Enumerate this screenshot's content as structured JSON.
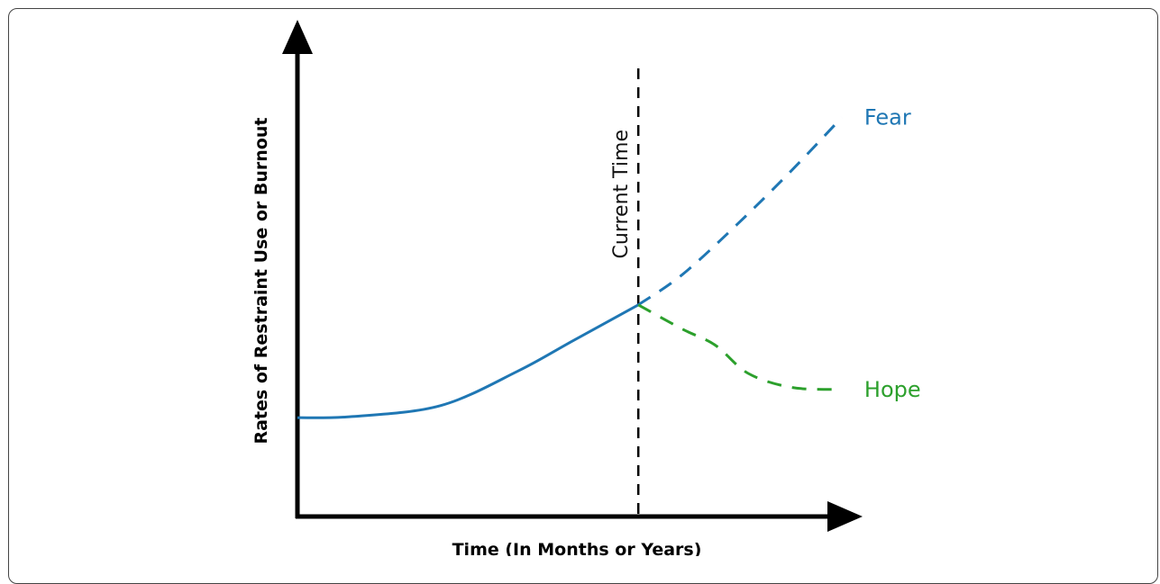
{
  "chart_data": {
    "type": "line",
    "title": "",
    "xlabel": "Time (In Months or Years)",
    "ylabel": "Rates of Restraint Use or Burnout",
    "xlim": [
      0,
      100
    ],
    "ylim": [
      0,
      100
    ],
    "grid": false,
    "marker": {
      "label": "Current Time",
      "x": 62,
      "style": "dashed",
      "color": "#000000"
    },
    "series": [
      {
        "name": "",
        "style": "solid",
        "color": "#1f77b4",
        "points": [
          [
            0,
            24.5
          ],
          [
            10,
            24.8
          ],
          [
            26,
            27.5
          ],
          [
            40,
            36
          ],
          [
            50,
            43.5
          ],
          [
            62,
            52.5
          ]
        ]
      },
      {
        "name": "Fear",
        "style": "dashed",
        "color": "#1f77b4",
        "points": [
          [
            62,
            52.5
          ],
          [
            70,
            60
          ],
          [
            80,
            72.5
          ],
          [
            90,
            86
          ],
          [
            99,
            99
          ]
        ]
      },
      {
        "name": "Hope",
        "style": "dashed",
        "color": "#2ca02c",
        "points": [
          [
            62,
            52.5
          ],
          [
            70,
            46.5
          ],
          [
            76,
            42.5
          ],
          [
            82,
            35.5
          ],
          [
            90,
            32
          ],
          [
            99,
            31.5
          ]
        ]
      }
    ]
  }
}
